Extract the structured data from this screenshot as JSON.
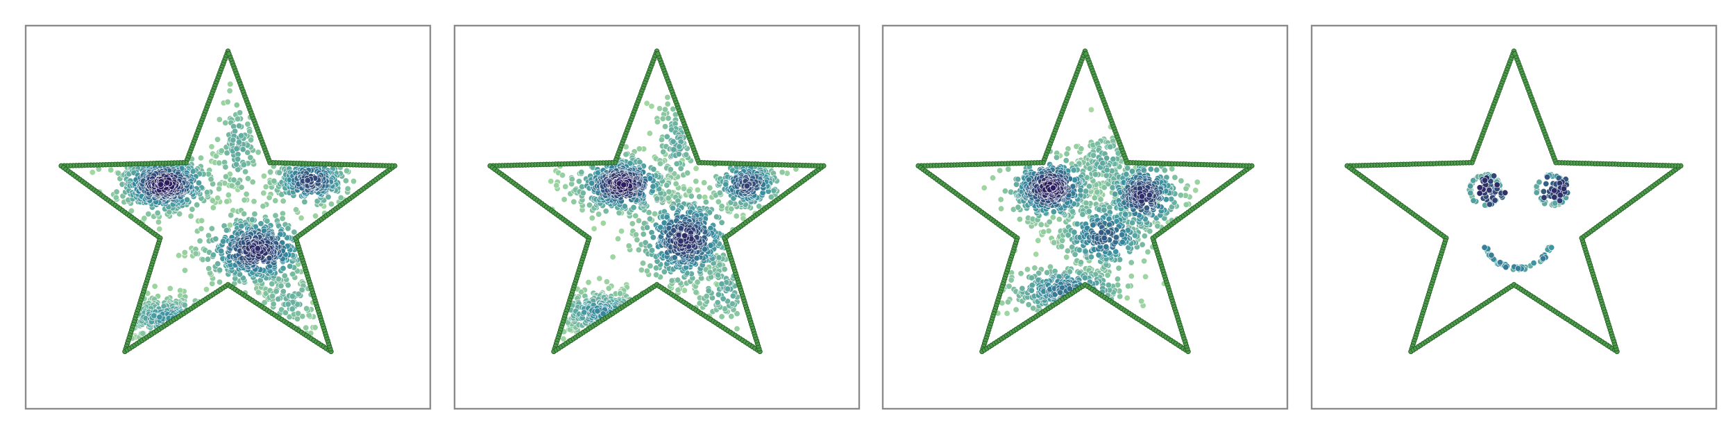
{
  "figure": {
    "title": "",
    "panel_count": 4
  },
  "colors": {
    "outline_fill": "#4f9a4f",
    "outline_edge": "#1f5e1f",
    "frame": "#8a8a8a",
    "cmap_low": "#a6dba0",
    "cmap_mid": "#3a8fa0",
    "cmap_high": "#2c1e5e"
  },
  "chart_data": [
    {
      "type": "scatter",
      "title": "",
      "xlim": [
        -1.05,
        1.05
      ],
      "ylim": [
        -1.05,
        1.05
      ],
      "grid": false,
      "axes_ticks": false,
      "outline": {
        "shape": "star",
        "points": 5,
        "outer_radius": 0.91,
        "inner_radius": 0.37,
        "marker_count": 420
      },
      "clusters": [
        {
          "name": "",
          "center": [
            -0.33,
            0.18
          ],
          "spread": [
            0.12,
            0.08
          ],
          "n": 520,
          "density": 1.0
        },
        {
          "name": "",
          "center": [
            0.43,
            0.2
          ],
          "spread": [
            0.1,
            0.07
          ],
          "n": 260,
          "density": 0.8
        },
        {
          "name": "",
          "center": [
            0.15,
            -0.18
          ],
          "spread": [
            0.14,
            0.1
          ],
          "n": 460,
          "density": 0.9
        },
        {
          "name": "",
          "center": [
            -0.31,
            -0.55
          ],
          "spread": [
            0.13,
            0.06
          ],
          "n": 200,
          "density": 0.45
        },
        {
          "name": "",
          "center": [
            0.05,
            0.38
          ],
          "spread": [
            0.06,
            0.16
          ],
          "n": 110,
          "density": 0.3
        },
        {
          "name": "",
          "center": [
            0.32,
            -0.45
          ],
          "spread": [
            0.1,
            0.1
          ],
          "n": 90,
          "density": 0.25
        }
      ]
    },
    {
      "type": "scatter",
      "title": "",
      "xlim": [
        -1.05,
        1.05
      ],
      "ylim": [
        -1.05,
        1.05
      ],
      "grid": false,
      "axes_ticks": false,
      "outline": {
        "shape": "star",
        "points": 5,
        "outer_radius": 0.91,
        "inner_radius": 0.37,
        "marker_count": 420
      },
      "clusters": [
        {
          "name": "",
          "center": [
            -0.18,
            0.18
          ],
          "spread": [
            0.12,
            0.08
          ],
          "n": 460,
          "density": 1.0
        },
        {
          "name": "",
          "center": [
            0.47,
            0.18
          ],
          "spread": [
            0.09,
            0.07
          ],
          "n": 220,
          "density": 0.8
        },
        {
          "name": "",
          "center": [
            0.15,
            -0.12
          ],
          "spread": [
            0.12,
            0.12
          ],
          "n": 460,
          "density": 0.9
        },
        {
          "name": "",
          "center": [
            -0.28,
            -0.52
          ],
          "spread": [
            0.13,
            0.06
          ],
          "n": 240,
          "density": 0.5
        },
        {
          "name": "",
          "center": [
            0.1,
            0.4
          ],
          "spread": [
            0.06,
            0.14
          ],
          "n": 100,
          "density": 0.3
        },
        {
          "name": "",
          "center": [
            0.35,
            -0.4
          ],
          "spread": [
            0.1,
            0.1
          ],
          "n": 90,
          "density": 0.3
        }
      ]
    },
    {
      "type": "scatter",
      "title": "",
      "xlim": [
        -1.05,
        1.05
      ],
      "ylim": [
        -1.05,
        1.05
      ],
      "grid": false,
      "axes_ticks": false,
      "outline": {
        "shape": "star",
        "points": 5,
        "outer_radius": 0.91,
        "inner_radius": 0.37,
        "marker_count": 420
      },
      "clusters": [
        {
          "name": "",
          "center": [
            -0.18,
            0.16
          ],
          "spread": [
            0.11,
            0.09
          ],
          "n": 420,
          "density": 1.0
        },
        {
          "name": "",
          "center": [
            0.3,
            0.12
          ],
          "spread": [
            0.1,
            0.1
          ],
          "n": 320,
          "density": 0.9
        },
        {
          "name": "",
          "center": [
            0.1,
            -0.1
          ],
          "spread": [
            0.12,
            0.1
          ],
          "n": 260,
          "density": 0.7
        },
        {
          "name": "",
          "center": [
            -0.1,
            -0.4
          ],
          "spread": [
            0.16,
            0.07
          ],
          "n": 260,
          "density": 0.6
        },
        {
          "name": "",
          "center": [
            0.1,
            0.3
          ],
          "spread": [
            0.08,
            0.1
          ],
          "n": 120,
          "density": 0.3
        }
      ]
    },
    {
      "type": "scatter",
      "title": "",
      "xlim": [
        -1.05,
        1.05
      ],
      "ylim": [
        -1.05,
        1.05
      ],
      "grid": false,
      "axes_ticks": false,
      "outline": {
        "shape": "star",
        "points": 5,
        "outer_radius": 0.91,
        "inner_radius": 0.37,
        "marker_count": 420
      },
      "face": {
        "eyes": [
          {
            "center": [
              -0.15,
              0.15
            ],
            "ring_radius": 0.08,
            "core_spread": 0.03,
            "n": 90
          },
          {
            "center": [
              0.2,
              0.15
            ],
            "ring_radius": 0.08,
            "core_spread": 0.03,
            "n": 90
          }
        ],
        "smile": {
          "center": [
            0.02,
            -0.1
          ],
          "radius": 0.18,
          "start_deg": 200,
          "end_deg": 340,
          "n": 55
        }
      }
    }
  ]
}
